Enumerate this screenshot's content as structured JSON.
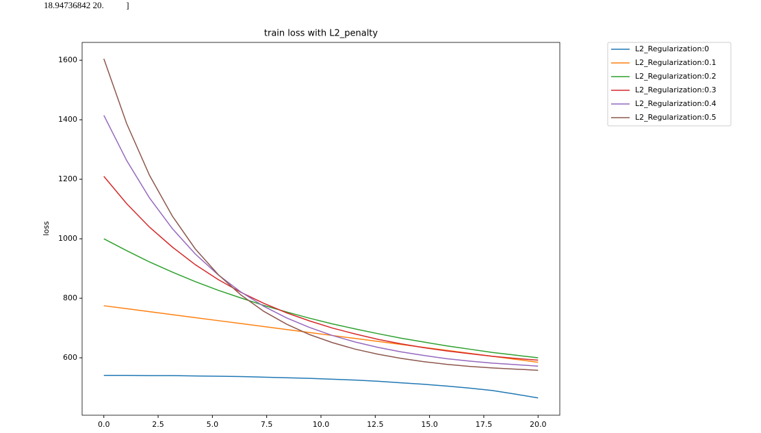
{
  "header_text": "18.94736842 20.          ]",
  "chart_data": {
    "type": "line",
    "title": "train loss with L2_penalty",
    "y_label": "loss",
    "x": [
      0,
      1.0526,
      2.1053,
      3.1579,
      4.2105,
      5.2632,
      6.3158,
      7.3684,
      8.4211,
      9.4737,
      10.5263,
      11.5789,
      12.6316,
      13.6842,
      14.7368,
      15.7895,
      16.8421,
      17.8947,
      18.9474,
      20
    ],
    "series": [
      {
        "name": "L2_Regularization:0",
        "color": "#1f77b4",
        "values": [
          541,
          541,
          540,
          540,
          539,
          538,
          537,
          535,
          533,
          531,
          528,
          525,
          521,
          516,
          511,
          505,
          498,
          490,
          478,
          465
        ]
      },
      {
        "name": "L2_Regularization:0.1",
        "color": "#ff7f0e",
        "values": [
          775,
          765,
          755,
          745,
          735,
          725,
          715,
          705,
          695,
          685,
          675,
          665,
          655,
          645,
          635,
          625,
          615,
          605,
          595,
          585
        ]
      },
      {
        "name": "L2_Regularization:0.2",
        "color": "#2ca02c",
        "values": [
          1000,
          960,
          922,
          888,
          856,
          827,
          801,
          776,
          754,
          733,
          714,
          697,
          681,
          666,
          653,
          640,
          629,
          618,
          609,
          600
        ]
      },
      {
        "name": "L2_Regularization:0.3",
        "color": "#d62728",
        "values": [
          1210,
          1118,
          1039,
          972,
          913,
          863,
          820,
          783,
          751,
          724,
          700,
          680,
          662,
          647,
          634,
          623,
          614,
          605,
          598,
          592
        ]
      },
      {
        "name": "L2_Regularization:0.4",
        "color": "#9467bd",
        "values": [
          1415,
          1263,
          1137,
          1034,
          949,
          879,
          821,
          773,
          734,
          702,
          675,
          653,
          635,
          620,
          608,
          597,
          589,
          582,
          577,
          572
        ]
      },
      {
        "name": "L2_Regularization:0.5",
        "color": "#8c564b",
        "values": [
          1605,
          1387,
          1213,
          1076,
          966,
          880,
          811,
          756,
          713,
          678,
          651,
          629,
          612,
          598,
          587,
          578,
          571,
          566,
          562,
          558
        ]
      }
    ],
    "xlim": [
      -1,
      21
    ],
    "ylim": [
      407,
      1660
    ],
    "xticks": [
      {
        "value": 0,
        "label": "0.0"
      },
      2.5,
      {
        "value": 5,
        "label": "5.0"
      },
      7.5,
      {
        "value": 10,
        "label": "10.0"
      },
      12.5,
      {
        "value": 15,
        "label": "15.0"
      },
      17.5,
      {
        "value": 20,
        "label": "20.0"
      }
    ],
    "yticks": [
      600,
      800,
      1000,
      1200,
      1400,
      1600
    ],
    "legend": "outside right"
  }
}
